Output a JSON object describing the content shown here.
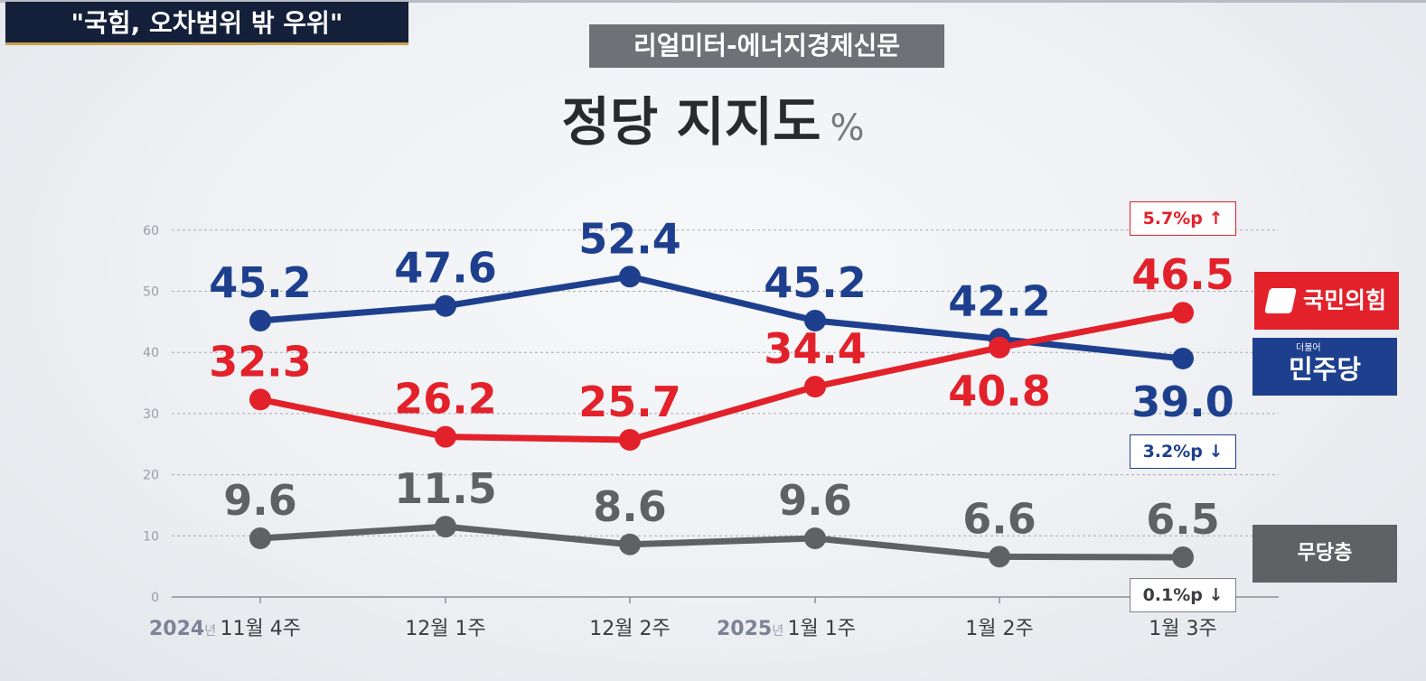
{
  "headline": "\"국힘, 오차범위 밖 우위\"",
  "source": "리얼미터-에너지경제신문",
  "title": "정당 지지도",
  "unit": "%",
  "colors": {
    "ppp": "#e3212a",
    "dem": "#1d3f8e",
    "none": "#5f6265"
  },
  "chart_data": {
    "type": "line",
    "title": "정당 지지도",
    "ylim": [
      0,
      60
    ],
    "yticks": [
      "0",
      "10",
      "20",
      "30",
      "40",
      "50",
      "60"
    ],
    "grid": true,
    "categories": [
      "2024년 11월 4주",
      "12월 1주",
      "12월 2주",
      "2025년 1월 1주",
      "1월 2주",
      "1월 3주"
    ],
    "x_labels": [
      {
        "year": "2024",
        "year_unit": "년",
        "label": "11월 4주"
      },
      {
        "year": "",
        "year_unit": "",
        "label": "12월 1주"
      },
      {
        "year": "",
        "year_unit": "",
        "label": "12월 2주"
      },
      {
        "year": "2025",
        "year_unit": "년",
        "label": "1월 1주"
      },
      {
        "year": "",
        "year_unit": "",
        "label": "1월 2주"
      },
      {
        "year": "",
        "year_unit": "",
        "label": "1월 3주"
      }
    ],
    "series": [
      {
        "key": "dem",
        "name": "민주당",
        "color": "#1d3f8e",
        "values": [
          45.2,
          47.6,
          52.4,
          45.2,
          42.2,
          39.0
        ],
        "labels": [
          "45.2",
          "47.6",
          "52.4",
          "45.2",
          "42.2",
          "39.0"
        ]
      },
      {
        "key": "ppp",
        "name": "국민의힘",
        "color": "#e3212a",
        "values": [
          32.3,
          26.2,
          25.7,
          34.4,
          40.8,
          46.5
        ],
        "labels": [
          "32.3",
          "26.2",
          "25.7",
          "34.4",
          "40.8",
          "46.5"
        ]
      },
      {
        "key": "none",
        "name": "무당층",
        "color": "#5f6265",
        "values": [
          9.6,
          11.5,
          8.6,
          9.6,
          6.6,
          6.5
        ],
        "labels": [
          "9.6",
          "11.5",
          "8.6",
          "9.6",
          "6.6",
          "6.5"
        ]
      }
    ]
  },
  "legend": {
    "ppp": "국민의힘",
    "dem": "민주당",
    "dem_sub": "더불어",
    "none": "무당층"
  },
  "changes": {
    "ppp": "5.7%p ↑",
    "dem": "3.2%p ↓",
    "none": "0.1%p ↓"
  }
}
